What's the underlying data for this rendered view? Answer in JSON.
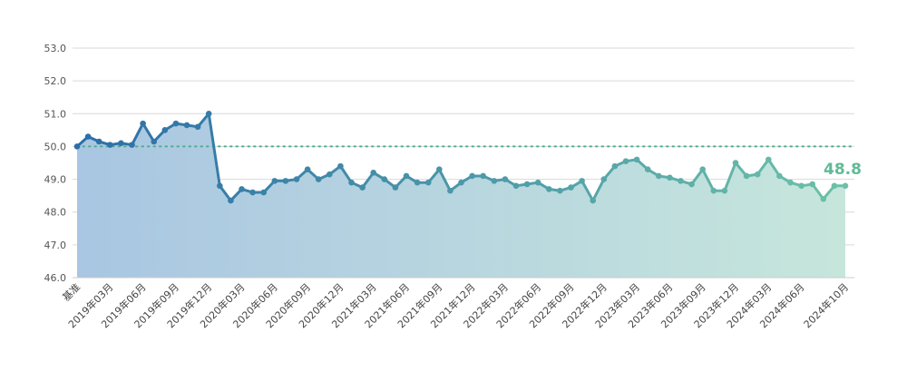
{
  "chart_data": {
    "type": "area",
    "ylim": [
      46.0,
      53.0
    ],
    "y_ticks": [
      "53.0",
      "52.0",
      "51.0",
      "50.0",
      "49.0",
      "48.0",
      "47.0",
      "46.0"
    ],
    "x_tick_labels": [
      "基准",
      "2019年03月",
      "2019年06月",
      "2019年09月",
      "2019年12月",
      "2020年03月",
      "2020年06月",
      "2020年09月",
      "2020年12月",
      "2021年03月",
      "2021年06月",
      "2021年09月",
      "2021年12月",
      "2022年03月",
      "2022年06月",
      "2022年09月",
      "2022年12月",
      "2023年03月",
      "2023年06月",
      "2023年09月",
      "2023年12月",
      "2024年03月",
      "2024年06月",
      "2024年10月"
    ],
    "x_tick_indices": [
      0,
      3,
      6,
      9,
      12,
      15,
      18,
      21,
      24,
      27,
      30,
      33,
      36,
      39,
      42,
      45,
      48,
      51,
      54,
      57,
      60,
      63,
      66,
      70
    ],
    "reference_line": 50.0,
    "grid": "horizontal",
    "last_value_label": "48.8",
    "values": [
      50.0,
      50.3,
      50.15,
      50.05,
      50.1,
      50.05,
      50.7,
      50.15,
      50.5,
      50.7,
      50.65,
      50.6,
      51.0,
      48.8,
      48.35,
      48.7,
      48.6,
      48.6,
      48.95,
      48.95,
      49.0,
      49.3,
      49.0,
      49.15,
      49.4,
      48.9,
      48.75,
      49.2,
      49.0,
      48.75,
      49.1,
      48.9,
      48.9,
      49.3,
      48.65,
      48.9,
      49.1,
      49.1,
      48.95,
      49.0,
      48.8,
      48.85,
      48.9,
      48.7,
      48.65,
      48.75,
      48.95,
      48.35,
      49.0,
      49.4,
      49.55,
      49.6,
      49.3,
      49.1,
      49.05,
      48.95,
      48.85,
      49.3,
      48.65,
      48.65,
      49.5,
      49.1,
      49.15,
      49.6,
      49.1,
      48.9,
      48.8,
      48.85,
      48.4,
      48.8,
      48.8
    ],
    "colors": {
      "start": "#2b6ea8",
      "end": "#6cc1a8",
      "fill_start": "#a9c6e2",
      "fill_end": "#c6e6dc",
      "grid": "#d9d9d9",
      "axis": "#cccccc",
      "reference": "#4fae8c",
      "label": "#5fbb96"
    }
  }
}
